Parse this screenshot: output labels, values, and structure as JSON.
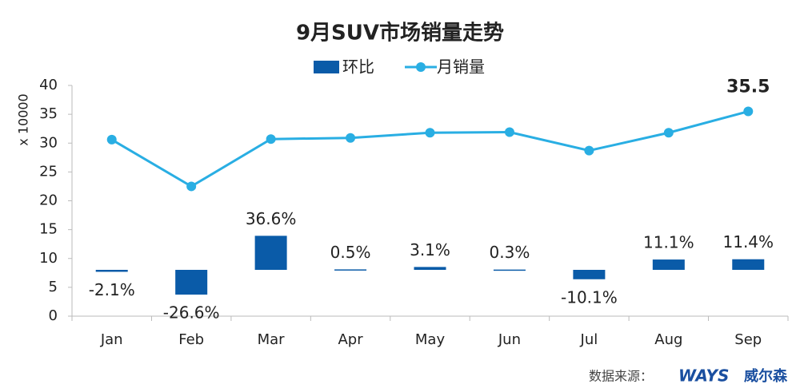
{
  "chart_data": {
    "type": "bar-line",
    "title": "9月SUV市场销量走势",
    "y_label": "x 10000",
    "categories": [
      "Jan",
      "Feb",
      "Mar",
      "Apr",
      "May",
      "Jun",
      "Jul",
      "Aug",
      "Sep"
    ],
    "series": [
      {
        "name": "环比",
        "type": "bar",
        "color": "#0a5ba8",
        "values": [
          -2.1,
          -26.6,
          36.6,
          0.5,
          3.1,
          0.3,
          -10.1,
          11.1,
          11.4
        ],
        "value_labels": [
          "-2.1%",
          "-26.6%",
          "36.6%",
          "0.5%",
          "3.1%",
          "0.3%",
          "-10.1%",
          "11.1%",
          "11.4%"
        ]
      },
      {
        "name": "月销量",
        "type": "line",
        "color": "#29aee3",
        "values": [
          30.6,
          22.5,
          30.7,
          30.9,
          31.8,
          31.9,
          28.7,
          31.8,
          35.5
        ],
        "value_labels": [
          null,
          null,
          null,
          null,
          null,
          null,
          null,
          null,
          "35.5"
        ]
      }
    ],
    "ylim": [
      0,
      40
    ],
    "yticks": [
      0,
      5,
      10,
      15,
      20,
      25,
      30,
      35,
      40
    ],
    "grid": false,
    "source": "数据来源：",
    "logo": "WAYS",
    "logo_text": "威尔森"
  }
}
